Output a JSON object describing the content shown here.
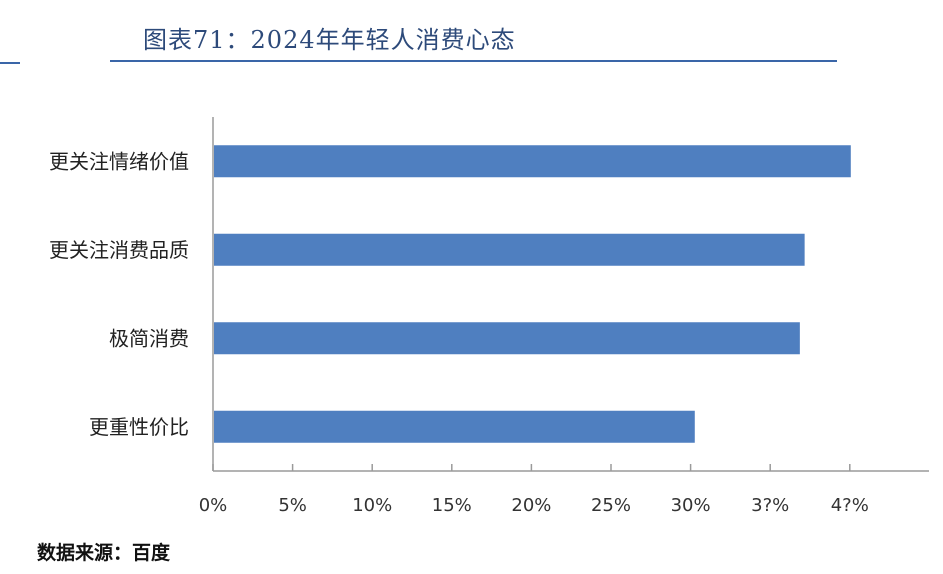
{
  "title": "图表71：2024年年轻人消费心态",
  "source": "数据来源：百度",
  "colors": {
    "bar": "#4f7fc0",
    "title": "#2d4a7a",
    "rule": "#3a66a8",
    "axis": "#9a9a9a"
  },
  "chart_data": {
    "type": "bar",
    "orientation": "horizontal",
    "categories": [
      "更关注情绪价值",
      "更关注消费品质",
      "极简消费",
      "更重性价比"
    ],
    "values": [
      40,
      37.1,
      36.8,
      30.2
    ],
    "xlim": [
      0,
      40
    ],
    "xticks": [
      "0%",
      "5%",
      "10%",
      "15%",
      "20%",
      "25%",
      "30%",
      "3?%",
      "4?%"
    ],
    "grid": false,
    "legend": "none"
  }
}
